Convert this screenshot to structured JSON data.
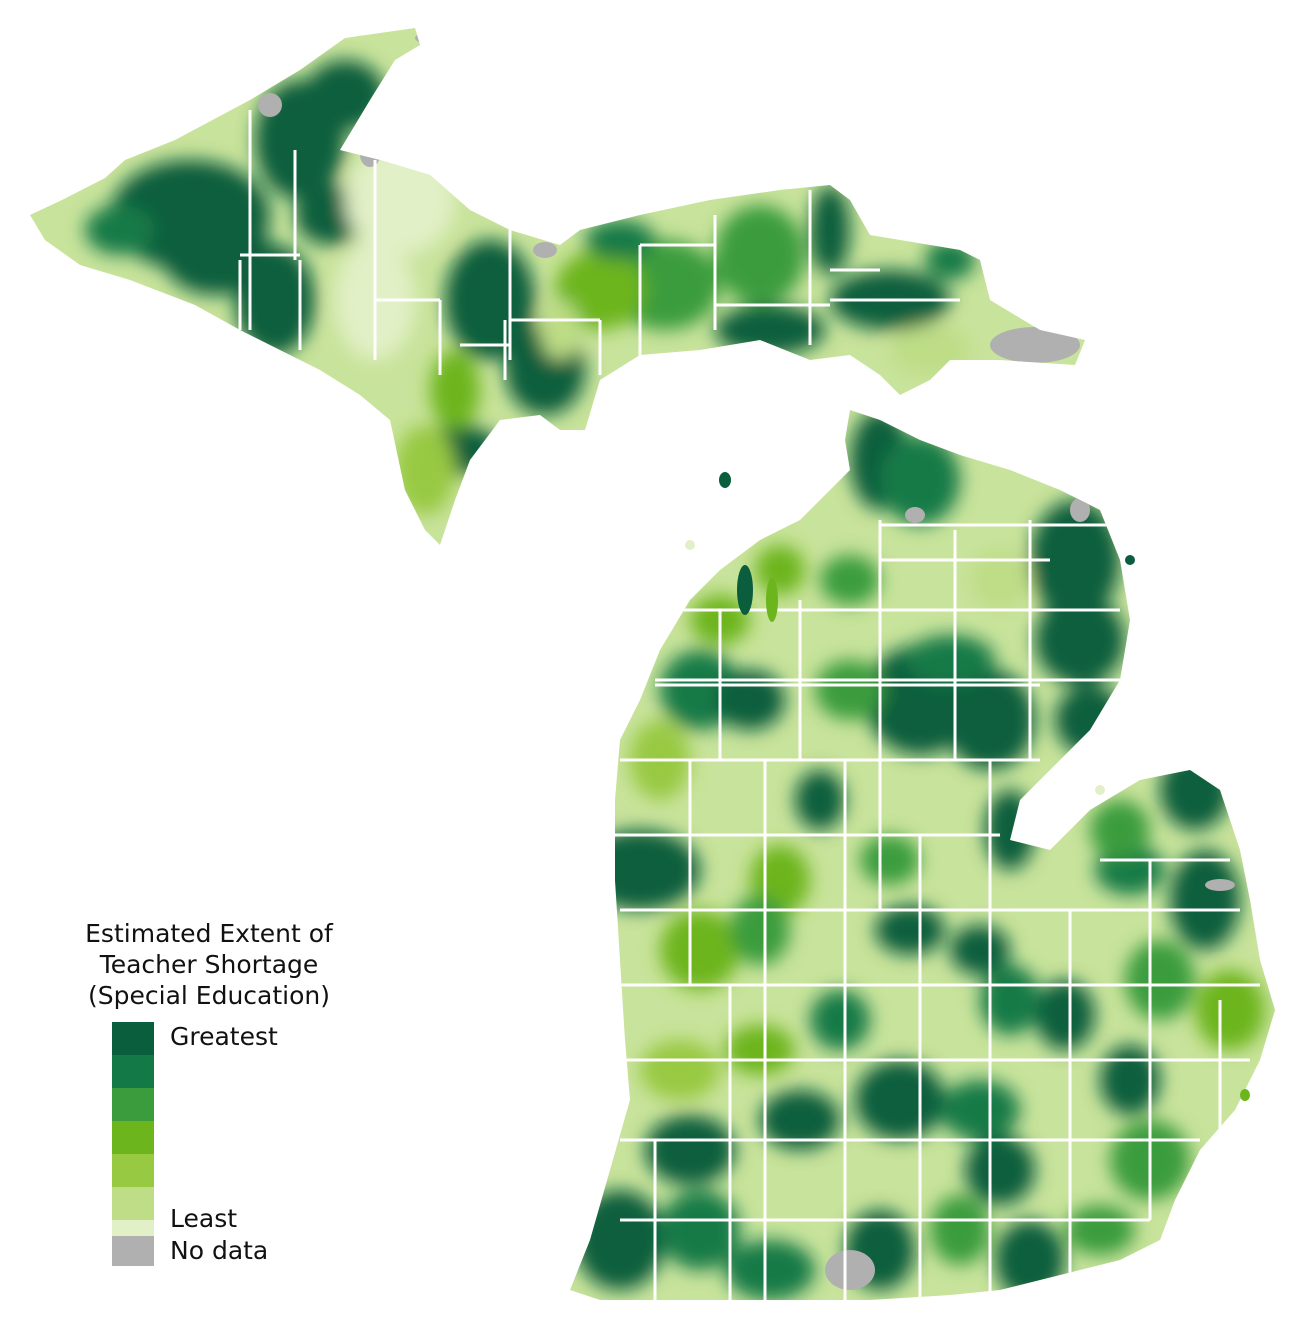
{
  "legend": {
    "title_line1": "Estimated Extent of",
    "title_line2": "Teacher Shortage",
    "title_line3": "(Special Education)",
    "label_high": "Greatest",
    "label_low": "Least",
    "label_nodata": "No data",
    "scale_colors": [
      "#0b5e3d",
      "#137a47",
      "#3a9c3c",
      "#6db51c",
      "#98c942",
      "#bedd86",
      "#e1f0c6"
    ],
    "nodata_color": "#b0b0b0"
  },
  "colors": {
    "land_base": "#c8e39b",
    "county_border": "#ffffff",
    "background": "#ffffff"
  }
}
